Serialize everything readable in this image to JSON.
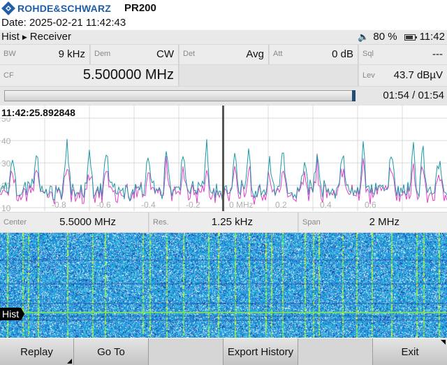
{
  "header": {
    "brand": "ROHDE&SCHWARZ",
    "logo_icon": "rohde-schwarz-diamond-icon",
    "model": "PR200"
  },
  "date_line": "Date: 2025-02-21 11:42:43",
  "menubar": {
    "mode": "Hist",
    "submode": "Receiver",
    "battery": "80 %",
    "clock": "11:42",
    "speaker_icon": "speaker-icon",
    "battery_icon": "battery-icon"
  },
  "params": {
    "bw": {
      "label": "BW",
      "value": "9 kHz"
    },
    "dem": {
      "label": "Dem",
      "value": "CW"
    },
    "det": {
      "label": "Det",
      "value": "Avg"
    },
    "att": {
      "label": "Att",
      "value": "0 dB"
    },
    "sql": {
      "label": "Sql",
      "value": "---"
    },
    "cf": {
      "label": "CF",
      "value": "5.500000 MHz"
    },
    "lev": {
      "label": "Lev",
      "value": "43.7 dBµV"
    }
  },
  "playback": {
    "progress_fraction": 1.0,
    "time": "01:54 / 01:54"
  },
  "spectrum": {
    "timestamp": "11:42:25.892848",
    "y_ticks": [
      "50",
      "40",
      "30",
      "20",
      "10"
    ],
    "x_ticks": [
      "-0.8",
      "-0.6",
      "-0.4",
      "-0.2",
      "0 MHz",
      "0.2",
      "0.4",
      "0.6"
    ],
    "colors": {
      "trace_teal": "#1e9aa6",
      "trace_magenta": "#e040c8",
      "marker_line": "#555555"
    }
  },
  "span_row": {
    "center": {
      "label": "Center",
      "value": "5.5000 MHz"
    },
    "res": {
      "label": "Res.",
      "value": "1.25 kHz"
    },
    "span": {
      "label": "Span",
      "value": "2 MHz"
    }
  },
  "waterfall": {
    "hist_label": "Hist",
    "colors": {
      "base": "#2a9be0",
      "peak": "#c8f040",
      "dark": "#1a2f9a"
    }
  },
  "softkeys": [
    "Replay",
    "Go To",
    "",
    "Export History",
    "",
    "Exit"
  ]
}
